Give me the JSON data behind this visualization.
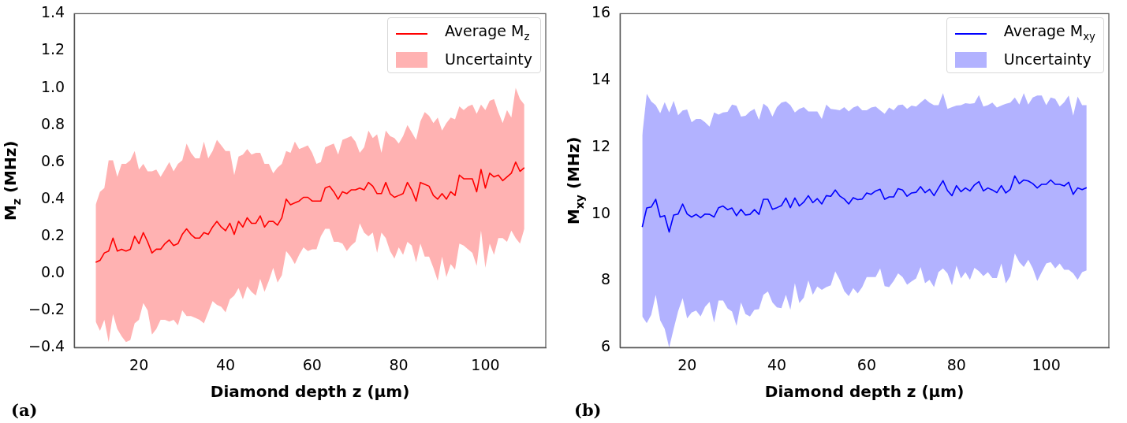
{
  "chart_data": [
    {
      "type": "line",
      "xlabel": "Diamond depth z (µm)",
      "ylabel": "M$_{z}$ (MHz)",
      "legend": "top right",
      "annotations": [
        "(a)",
        "Uncertainty"
      ],
      "xlim": [
        5.05,
        113.95
      ],
      "xticks": [
        20,
        40,
        60,
        80,
        100
      ],
      "ylim": [
        -0.4,
        1.4
      ],
      "yticks": [
        {
          "value": -0.4,
          "label": "−0.4"
        },
        {
          "value": -0.2,
          "label": "−0.2"
        },
        {
          "value": 0,
          "label": "0.0"
        },
        {
          "value": 0.2,
          "label": "0.2"
        },
        {
          "value": 0.4,
          "label": "0.4"
        },
        {
          "value": 0.6,
          "label": "0.6"
        },
        {
          "value": 0.8,
          "label": "0.8"
        },
        {
          "value": 1.0,
          "label": "1.0"
        },
        {
          "value": 1.2,
          "label": "1.2"
        },
        {
          "value": 1.4,
          "label": "1.4"
        }
      ],
      "x": [
        10,
        11,
        12,
        13,
        14,
        15,
        16,
        17,
        18,
        19,
        20,
        21,
        22,
        23,
        24,
        25,
        26,
        27,
        28,
        29,
        30,
        31,
        32,
        33,
        34,
        35,
        36,
        37,
        38,
        39,
        40,
        41,
        42,
        43,
        44,
        45,
        46,
        47,
        48,
        49,
        50,
        51,
        52,
        53,
        54,
        55,
        56,
        57,
        58,
        59,
        60,
        61,
        62,
        63,
        64,
        65,
        66,
        67,
        68,
        69,
        70,
        71,
        72,
        73,
        74,
        75,
        76,
        77,
        78,
        79,
        80,
        81,
        82,
        83,
        84,
        85,
        86,
        87,
        88,
        89,
        90,
        91,
        92,
        93,
        94,
        95,
        96,
        97,
        98,
        99,
        100,
        101,
        102,
        103,
        104,
        105,
        106,
        107,
        108,
        109
      ],
      "series": [
        {
          "name": "Average M$_{z}$",
          "color": "#ff0000",
          "values": [
            0.06,
            0.07,
            0.11,
            0.12,
            0.19,
            0.12,
            0.13,
            0.12,
            0.13,
            0.2,
            0.16,
            0.22,
            0.17,
            0.11,
            0.13,
            0.13,
            0.16,
            0.18,
            0.15,
            0.16,
            0.21,
            0.24,
            0.21,
            0.19,
            0.19,
            0.22,
            0.21,
            0.25,
            0.28,
            0.25,
            0.23,
            0.27,
            0.21,
            0.28,
            0.25,
            0.3,
            0.27,
            0.27,
            0.31,
            0.25,
            0.28,
            0.28,
            0.26,
            0.3,
            0.4,
            0.37,
            0.38,
            0.39,
            0.41,
            0.41,
            0.39,
            0.39,
            0.39,
            0.46,
            0.47,
            0.44,
            0.4,
            0.44,
            0.43,
            0.45,
            0.45,
            0.46,
            0.45,
            0.49,
            0.47,
            0.43,
            0.43,
            0.49,
            0.43,
            0.41,
            0.42,
            0.43,
            0.49,
            0.45,
            0.39,
            0.49,
            0.48,
            0.47,
            0.42,
            0.4,
            0.43,
            0.4,
            0.44,
            0.42,
            0.53,
            0.51,
            0.51,
            0.51,
            0.44,
            0.56,
            0.46,
            0.54,
            0.52,
            0.53,
            0.5,
            0.52,
            0.54,
            0.6,
            0.55,
            0.57
          ],
          "upper": [
            0.37,
            0.44,
            0.46,
            0.61,
            0.61,
            0.52,
            0.59,
            0.59,
            0.61,
            0.66,
            0.56,
            0.59,
            0.55,
            0.55,
            0.56,
            0.52,
            0.56,
            0.6,
            0.55,
            0.59,
            0.61,
            0.7,
            0.65,
            0.62,
            0.62,
            0.71,
            0.62,
            0.66,
            0.72,
            0.69,
            0.66,
            0.66,
            0.53,
            0.63,
            0.64,
            0.67,
            0.64,
            0.65,
            0.65,
            0.59,
            0.59,
            0.54,
            0.57,
            0.59,
            0.66,
            0.65,
            0.71,
            0.67,
            0.68,
            0.69,
            0.65,
            0.59,
            0.6,
            0.68,
            0.69,
            0.7,
            0.64,
            0.72,
            0.73,
            0.74,
            0.71,
            0.65,
            0.68,
            0.77,
            0.73,
            0.75,
            0.65,
            0.77,
            0.74,
            0.73,
            0.7,
            0.74,
            0.8,
            0.76,
            0.72,
            0.82,
            0.87,
            0.85,
            0.81,
            0.84,
            0.77,
            0.81,
            0.84,
            0.83,
            0.9,
            0.88,
            0.9,
            0.91,
            0.86,
            0.91,
            0.88,
            0.93,
            0.94,
            0.87,
            0.81,
            0.88,
            0.84,
            1.0,
            0.94,
            0.91
          ],
          "lower": [
            -0.26,
            -0.31,
            -0.25,
            -0.37,
            -0.22,
            -0.3,
            -0.34,
            -0.37,
            -0.36,
            -0.27,
            -0.25,
            -0.16,
            -0.2,
            -0.33,
            -0.3,
            -0.25,
            -0.25,
            -0.26,
            -0.25,
            -0.28,
            -0.2,
            -0.23,
            -0.23,
            -0.24,
            -0.25,
            -0.27,
            -0.21,
            -0.15,
            -0.17,
            -0.18,
            -0.21,
            -0.14,
            -0.12,
            -0.08,
            -0.14,
            -0.07,
            -0.1,
            -0.12,
            -0.03,
            -0.1,
            -0.04,
            0.03,
            -0.05,
            -0.01,
            0.12,
            0.09,
            0.05,
            0.1,
            0.14,
            0.12,
            0.13,
            0.13,
            0.2,
            0.24,
            0.24,
            0.17,
            0.17,
            0.16,
            0.12,
            0.15,
            0.17,
            0.27,
            0.22,
            0.2,
            0.22,
            0.11,
            0.22,
            0.19,
            0.12,
            0.08,
            0.14,
            0.1,
            0.17,
            0.15,
            0.06,
            0.16,
            0.09,
            0.09,
            0.03,
            -0.04,
            0.09,
            -0.02,
            0.05,
            0.02,
            0.16,
            0.15,
            0.13,
            0.11,
            0.04,
            0.23,
            0.03,
            0.16,
            0.1,
            0.19,
            0.19,
            0.17,
            0.23,
            0.19,
            0.16,
            0.24
          ]
        }
      ]
    },
    {
      "type": "line",
      "xlabel": "Diamond depth z (µm)",
      "ylabel": "M$_{xy}$ (MHz)",
      "legend": "top right",
      "annotations": [
        "(b)",
        "Uncertainty"
      ],
      "xlim": [
        5.05,
        113.95
      ],
      "xticks": [
        20,
        40,
        60,
        80,
        100
      ],
      "ylim": [
        6,
        16
      ],
      "yticks": [
        6,
        8,
        10,
        12,
        14,
        16
      ],
      "x": [
        10,
        11,
        12,
        13,
        14,
        15,
        16,
        17,
        18,
        19,
        20,
        21,
        22,
        23,
        24,
        25,
        26,
        27,
        28,
        29,
        30,
        31,
        32,
        33,
        34,
        35,
        36,
        37,
        38,
        39,
        40,
        41,
        42,
        43,
        44,
        45,
        46,
        47,
        48,
        49,
        50,
        51,
        52,
        53,
        54,
        55,
        56,
        57,
        58,
        59,
        60,
        61,
        62,
        63,
        64,
        65,
        66,
        67,
        68,
        69,
        70,
        71,
        72,
        73,
        74,
        75,
        76,
        77,
        78,
        79,
        80,
        81,
        82,
        83,
        84,
        85,
        86,
        87,
        88,
        89,
        90,
        91,
        92,
        93,
        94,
        95,
        96,
        97,
        98,
        99,
        100,
        101,
        102,
        103,
        104,
        105,
        106,
        107,
        108,
        109
      ],
      "series": [
        {
          "name": "Average M$_{xy}$",
          "color": "#0000ff",
          "values": [
            9.61,
            10.18,
            10.21,
            10.44,
            9.91,
            9.95,
            9.46,
            9.97,
            10.0,
            10.3,
            10.0,
            9.91,
            9.99,
            9.89,
            10.0,
            9.99,
            9.91,
            10.19,
            10.24,
            10.13,
            10.18,
            9.95,
            10.14,
            9.97,
            9.99,
            10.13,
            9.99,
            10.44,
            10.44,
            10.14,
            10.19,
            10.25,
            10.48,
            10.19,
            10.48,
            10.24,
            10.36,
            10.55,
            10.34,
            10.46,
            10.3,
            10.55,
            10.53,
            10.72,
            10.54,
            10.45,
            10.3,
            10.49,
            10.43,
            10.45,
            10.63,
            10.59,
            10.69,
            10.74,
            10.44,
            10.51,
            10.51,
            10.76,
            10.72,
            10.53,
            10.63,
            10.65,
            10.82,
            10.64,
            10.74,
            10.55,
            10.78,
            11.0,
            10.7,
            10.55,
            10.85,
            10.67,
            10.78,
            10.69,
            10.87,
            10.97,
            10.69,
            10.78,
            10.72,
            10.64,
            10.85,
            10.63,
            10.74,
            11.14,
            10.91,
            11.02,
            10.99,
            10.91,
            10.78,
            10.89,
            10.89,
            11.02,
            10.89,
            10.89,
            10.84,
            10.95,
            10.59,
            10.78,
            10.73,
            10.79
          ],
          "upper": [
            12.36,
            13.6,
            13.37,
            13.26,
            13.02,
            13.35,
            13.04,
            13.39,
            12.96,
            13.1,
            13.13,
            12.75,
            12.85,
            12.85,
            12.75,
            12.62,
            13.04,
            12.98,
            13.04,
            13.06,
            13.28,
            13.24,
            12.92,
            12.94,
            13.07,
            13.15,
            12.82,
            13.31,
            13.2,
            12.92,
            13.2,
            13.34,
            13.37,
            13.26,
            13.04,
            13.15,
            13.2,
            13.07,
            13.07,
            13.07,
            12.85,
            13.28,
            13.15,
            13.13,
            13.11,
            13.2,
            13.07,
            13.19,
            13.24,
            13.11,
            13.11,
            13.19,
            13.22,
            13.11,
            13.0,
            13.19,
            13.11,
            13.26,
            13.28,
            13.15,
            13.25,
            13.22,
            13.34,
            13.45,
            13.34,
            13.26,
            13.26,
            13.62,
            13.15,
            13.2,
            13.25,
            13.26,
            13.32,
            13.3,
            13.32,
            13.56,
            13.22,
            13.26,
            13.34,
            13.19,
            13.25,
            13.3,
            13.34,
            13.49,
            13.28,
            13.62,
            13.28,
            13.49,
            13.55,
            13.55,
            13.26,
            13.49,
            13.45,
            13.22,
            13.35,
            13.55,
            12.95,
            13.52,
            13.26,
            13.26
          ],
          "lower": [
            6.93,
            6.73,
            6.98,
            7.58,
            6.81,
            6.56,
            6.0,
            6.56,
            7.09,
            7.48,
            6.87,
            7.05,
            7.11,
            6.93,
            7.22,
            7.37,
            6.75,
            7.41,
            7.41,
            7.17,
            7.08,
            6.65,
            7.35,
            7.0,
            6.93,
            7.13,
            7.15,
            7.58,
            7.68,
            7.35,
            7.2,
            7.18,
            7.58,
            7.13,
            7.93,
            7.33,
            7.5,
            8.01,
            7.58,
            7.83,
            7.73,
            7.81,
            7.86,
            8.28,
            8.03,
            7.69,
            7.54,
            7.78,
            7.62,
            7.81,
            8.11,
            8.11,
            8.11,
            8.37,
            7.84,
            7.81,
            7.99,
            8.22,
            8.11,
            7.88,
            7.98,
            8.07,
            8.41,
            7.93,
            8.03,
            7.81,
            8.26,
            8.37,
            8.22,
            7.86,
            8.45,
            8.07,
            8.26,
            8.03,
            8.39,
            8.29,
            8.14,
            8.26,
            8.08,
            8.08,
            8.52,
            7.92,
            8.14,
            8.82,
            8.56,
            8.41,
            8.63,
            8.37,
            7.99,
            8.26,
            8.52,
            8.56,
            8.37,
            8.52,
            8.33,
            8.33,
            8.22,
            8.03,
            8.26,
            8.31
          ]
        }
      ]
    }
  ]
}
